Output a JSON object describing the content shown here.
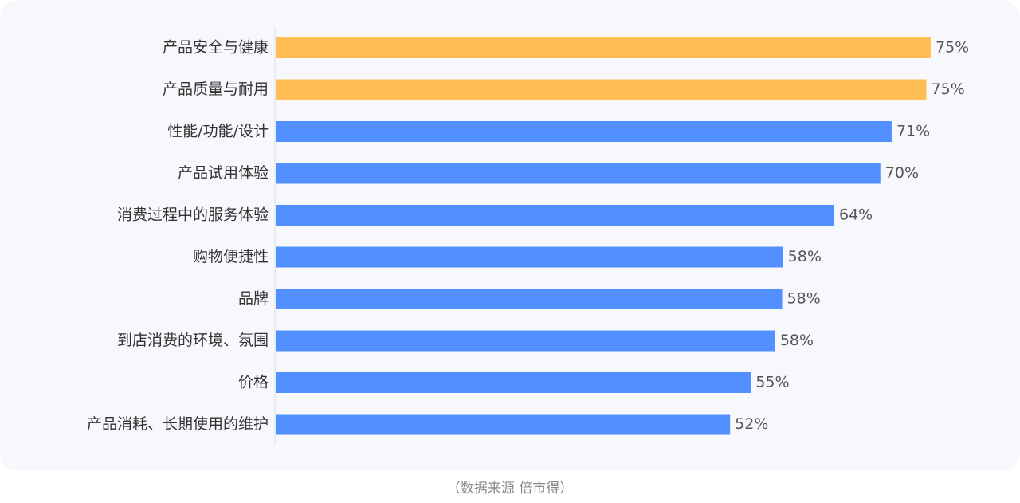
{
  "chart_data": {
    "type": "barh",
    "categories": [
      "产品安全与健康",
      "产品质量与耐用",
      "性能/功能/设计",
      "产品试用体验",
      "消费过程中的服务体验",
      "购物便捷性",
      "品牌",
      "到店消费的环境、氛围",
      "价格",
      "产品消耗、长期使用的维护"
    ],
    "values": [
      75.4,
      74.9,
      70.9,
      69.6,
      64.3,
      58.4,
      58.3,
      57.5,
      54.7,
      52.3
    ],
    "value_labels": [
      "75%",
      "75%",
      "71%",
      "70%",
      "64%",
      "58%",
      "58%",
      "58%",
      "55%",
      "52%"
    ],
    "colors": [
      "#ffbe55",
      "#ffbe55",
      "#528fff",
      "#528fff",
      "#528fff",
      "#528fff",
      "#528fff",
      "#528fff",
      "#528fff",
      "#528fff"
    ],
    "source": "（数据来源  倍市得）"
  }
}
